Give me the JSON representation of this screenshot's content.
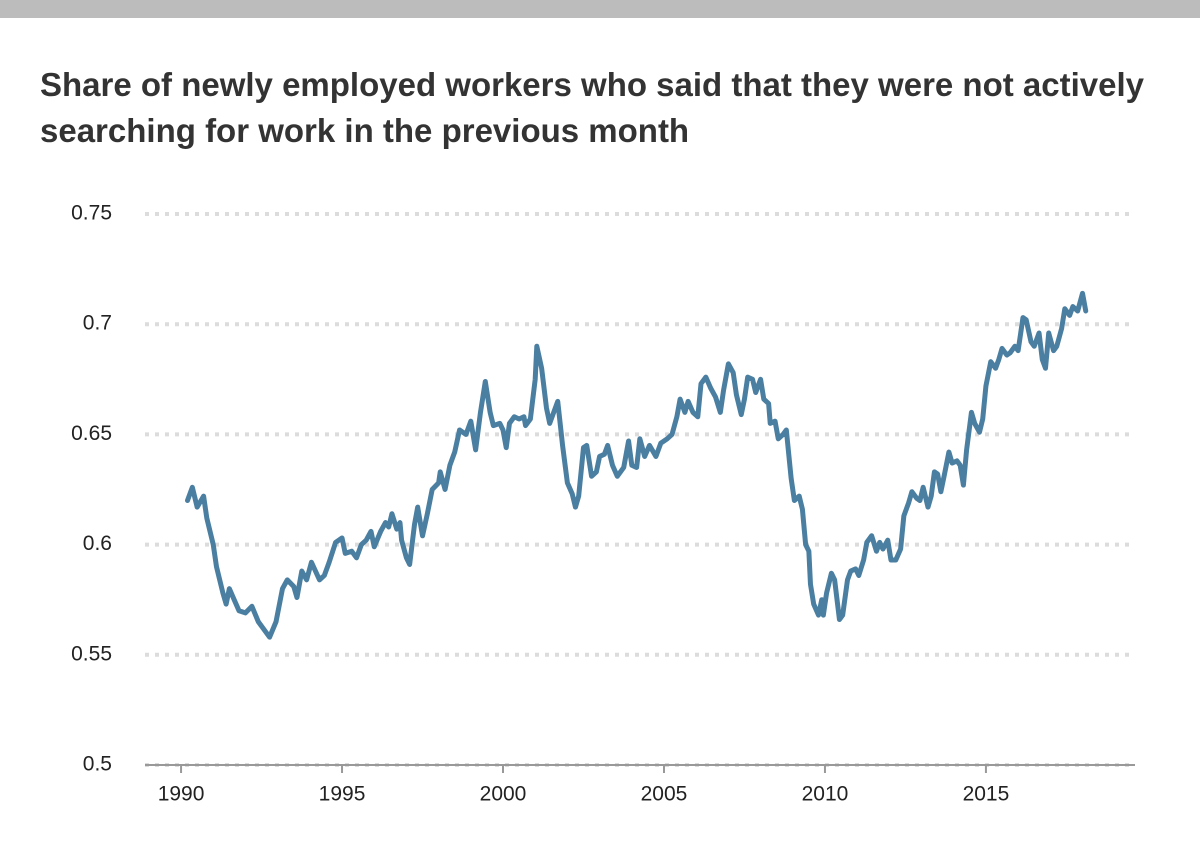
{
  "chart_data": {
    "type": "line",
    "title": "Share of newly employed workers who said that they were not actively searching for work in the previous month",
    "color": "#4b7fa1",
    "grid": true,
    "xlim": [
      1988.88,
      2019.63
    ],
    "ylim": [
      0.5,
      0.75
    ],
    "xticks": [
      1990,
      1995,
      2000,
      2005,
      2010,
      2015
    ],
    "yticks": [
      0.5,
      0.55,
      0.6,
      0.65,
      0.7,
      0.75
    ],
    "x": [
      1990.2,
      1990.35,
      1990.5,
      1990.7,
      1990.8,
      1991.0,
      1991.1,
      1991.3,
      1991.4,
      1991.5,
      1991.65,
      1991.8,
      1992.0,
      1992.2,
      1992.4,
      1992.6,
      1992.75,
      1992.95,
      1993.15,
      1993.3,
      1993.5,
      1993.6,
      1993.75,
      1993.9,
      1994.05,
      1994.3,
      1994.45,
      1994.6,
      1994.8,
      1995.0,
      1995.1,
      1995.3,
      1995.45,
      1995.6,
      1995.75,
      1995.9,
      1996.0,
      1996.2,
      1996.35,
      1996.45,
      1996.55,
      1996.7,
      1996.8,
      1996.85,
      1997.0,
      1997.1,
      1997.25,
      1997.35,
      1997.5,
      1997.65,
      1997.8,
      1998.0,
      1998.05,
      1998.2,
      1998.35,
      1998.5,
      1998.65,
      1998.85,
      1999.0,
      1999.15,
      1999.3,
      1999.45,
      1999.6,
      1999.7,
      1999.9,
      2000.0,
      2000.1,
      2000.2,
      2000.35,
      2000.5,
      2000.65,
      2000.7,
      2000.85,
      2001.0,
      2001.05,
      2001.2,
      2001.35,
      2001.45,
      2001.55,
      2001.7,
      2001.85,
      2002.0,
      2002.15,
      2002.25,
      2002.35,
      2002.5,
      2002.6,
      2002.75,
      2002.9,
      2003.0,
      2003.15,
      2003.25,
      2003.4,
      2003.55,
      2003.75,
      2003.9,
      2004.0,
      2004.15,
      2004.25,
      2004.4,
      2004.55,
      2004.75,
      2004.9,
      2005.1,
      2005.25,
      2005.4,
      2005.5,
      2005.65,
      2005.75,
      2005.9,
      2006.05,
      2006.15,
      2006.3,
      2006.45,
      2006.6,
      2006.75,
      2006.85,
      2007.0,
      2007.15,
      2007.25,
      2007.4,
      2007.5,
      2007.6,
      2007.75,
      2007.85,
      2008.0,
      2008.1,
      2008.25,
      2008.3,
      2008.45,
      2008.55,
      2008.7,
      2008.8,
      2008.95,
      2009.05,
      2009.2,
      2009.3,
      2009.4,
      2009.5,
      2009.55,
      2009.65,
      2009.8,
      2009.9,
      2009.95,
      2010.05,
      2010.2,
      2010.3,
      2010.45,
      2010.55,
      2010.7,
      2010.8,
      2010.95,
      2011.05,
      2011.2,
      2011.3,
      2011.45,
      2011.6,
      2011.7,
      2011.8,
      2011.95,
      2012.05,
      2012.2,
      2012.35,
      2012.45,
      2012.6,
      2012.7,
      2012.85,
      2012.95,
      2013.05,
      2013.2,
      2013.3,
      2013.4,
      2013.5,
      2013.6,
      2013.7,
      2013.85,
      2013.95,
      2014.1,
      2014.2,
      2014.3,
      2014.4,
      2014.55,
      2014.65,
      2014.8,
      2014.9,
      2015.0,
      2015.15,
      2015.3,
      2015.4,
      2015.5,
      2015.65,
      2015.75,
      2015.9,
      2016.0,
      2016.15,
      2016.25,
      2016.4,
      2016.5,
      2016.65,
      2016.75,
      2016.85,
      2016.95,
      2017.1,
      2017.2,
      2017.35,
      2017.45,
      2017.6,
      2017.7,
      2017.85,
      2018.0,
      2018.1
    ],
    "values": [
      0.62,
      0.626,
      0.617,
      0.622,
      0.612,
      0.6,
      0.59,
      0.578,
      0.573,
      0.58,
      0.575,
      0.57,
      0.569,
      0.572,
      0.565,
      0.561,
      0.558,
      0.565,
      0.58,
      0.584,
      0.581,
      0.576,
      0.588,
      0.584,
      0.592,
      0.584,
      0.586,
      0.592,
      0.601,
      0.603,
      0.596,
      0.597,
      0.594,
      0.6,
      0.602,
      0.606,
      0.599,
      0.606,
      0.61,
      0.608,
      0.614,
      0.607,
      0.61,
      0.602,
      0.594,
      0.591,
      0.609,
      0.617,
      0.604,
      0.614,
      0.625,
      0.628,
      0.633,
      0.625,
      0.636,
      0.642,
      0.652,
      0.65,
      0.656,
      0.643,
      0.66,
      0.674,
      0.66,
      0.654,
      0.655,
      0.652,
      0.644,
      0.655,
      0.658,
      0.657,
      0.658,
      0.654,
      0.657,
      0.675,
      0.69,
      0.68,
      0.662,
      0.655,
      0.659,
      0.665,
      0.645,
      0.628,
      0.623,
      0.617,
      0.622,
      0.644,
      0.645,
      0.631,
      0.633,
      0.64,
      0.641,
      0.645,
      0.636,
      0.631,
      0.635,
      0.647,
      0.636,
      0.635,
      0.648,
      0.64,
      0.645,
      0.64,
      0.646,
      0.648,
      0.65,
      0.658,
      0.666,
      0.66,
      0.665,
      0.66,
      0.658,
      0.673,
      0.676,
      0.671,
      0.667,
      0.66,
      0.67,
      0.682,
      0.678,
      0.668,
      0.659,
      0.666,
      0.676,
      0.675,
      0.669,
      0.675,
      0.666,
      0.664,
      0.655,
      0.656,
      0.648,
      0.65,
      0.652,
      0.63,
      0.62,
      0.622,
      0.616,
      0.6,
      0.597,
      0.582,
      0.573,
      0.568,
      0.575,
      0.568,
      0.578,
      0.587,
      0.584,
      0.566,
      0.568,
      0.584,
      0.588,
      0.589,
      0.586,
      0.593,
      0.601,
      0.604,
      0.597,
      0.601,
      0.598,
      0.602,
      0.593,
      0.593,
      0.598,
      0.613,
      0.619,
      0.624,
      0.621,
      0.62,
      0.626,
      0.617,
      0.622,
      0.633,
      0.632,
      0.624,
      0.631,
      0.642,
      0.637,
      0.638,
      0.636,
      0.627,
      0.643,
      0.66,
      0.655,
      0.651,
      0.657,
      0.672,
      0.683,
      0.68,
      0.684,
      0.689,
      0.686,
      0.687,
      0.69,
      0.688,
      0.703,
      0.702,
      0.692,
      0.69,
      0.696,
      0.684,
      0.68,
      0.696,
      0.688,
      0.69,
      0.698,
      0.707,
      0.704,
      0.708,
      0.706,
      0.714,
      0.706
    ]
  }
}
